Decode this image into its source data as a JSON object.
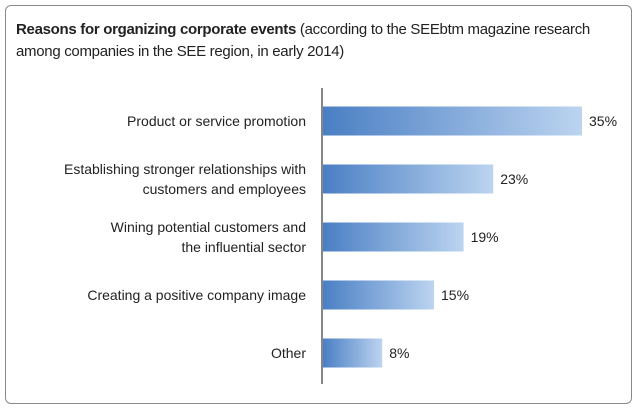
{
  "chart_data": {
    "type": "bar",
    "orientation": "horizontal",
    "title": "Reasons for organizing corporate events",
    "subtitle": "(according to the SEEbtm magazine research among companies in the SEE region, in early 2014)",
    "categories": [
      "Product or service promotion",
      "Establishing stronger relationships with customers and employees",
      "Wining potential customers and the influential sector",
      "Creating a positive company image",
      "Other"
    ],
    "category_lines": [
      [
        "Product or service promotion"
      ],
      [
        "Establishing stronger relationships with",
        "customers and employees"
      ],
      [
        "Wining potential customers and",
        "the influential sector"
      ],
      [
        "Creating a positive company image"
      ],
      [
        "Other"
      ]
    ],
    "values": [
      35,
      23,
      19,
      15,
      8
    ],
    "value_labels": [
      "35%",
      "23%",
      "19%",
      "15%",
      "8%"
    ],
    "unit": "%",
    "xlim": [
      0,
      35
    ],
    "grid": false,
    "legend": "none",
    "colors": {
      "bar_start": "#4a7fc4",
      "bar_end": "#bcd4f0",
      "axis": "#444444",
      "text": "#222222"
    }
  }
}
